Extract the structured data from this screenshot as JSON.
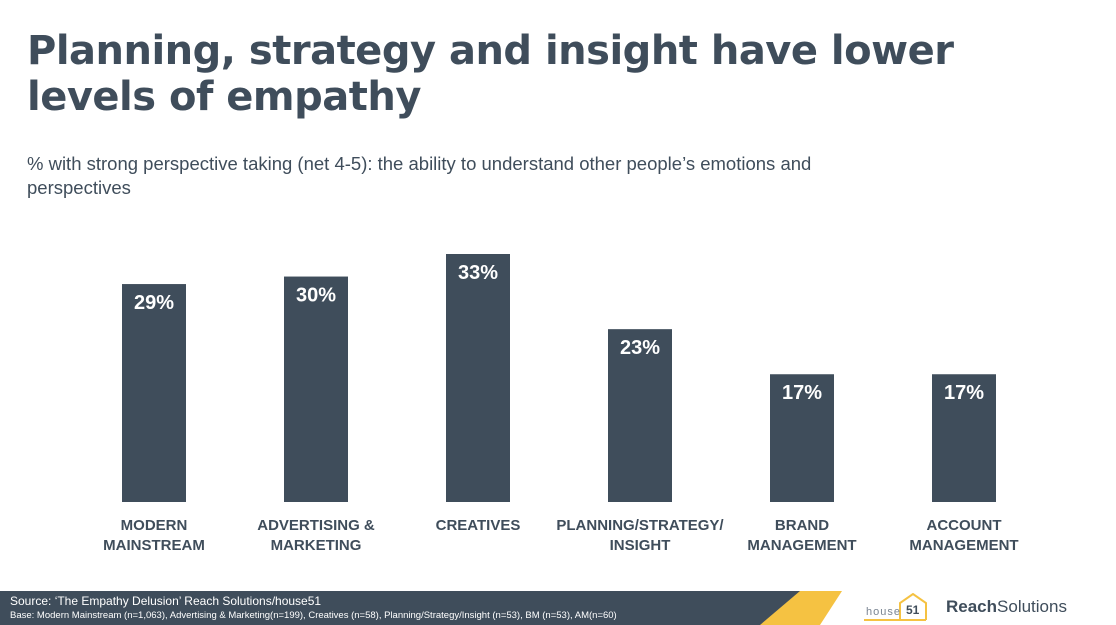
{
  "title": "Planning, strategy and insight have lower levels of empathy",
  "subtitle": "% with strong perspective taking (net 4-5): the ability to understand other people’s emotions and perspectives",
  "colors": {
    "bar": "#3f4d5b",
    "label": "#ffffff",
    "category": "#3f4d5b",
    "accent_yellow": "#f5c242"
  },
  "chart_data": {
    "type": "bar",
    "title": "% with strong perspective taking (net 4-5)",
    "categories": [
      [
        "MODERN",
        "MAINSTREAM"
      ],
      [
        "ADVERTISING &",
        "MARKETING"
      ],
      [
        "CREATIVES"
      ],
      [
        "PLANNING/STRATEGY/",
        "INSIGHT"
      ],
      [
        "BRAND",
        "MANAGEMENT"
      ],
      [
        "ACCOUNT",
        "MANAGEMENT"
      ]
    ],
    "values": [
      29,
      30,
      33,
      23,
      17,
      17
    ],
    "value_labels": [
      "29%",
      "30%",
      "33%",
      "23%",
      "17%",
      "17%"
    ],
    "unit": "%",
    "ylim": [
      0,
      40
    ],
    "xlabel": "",
    "ylabel": "",
    "grid": false
  },
  "footer": {
    "source": "Source: ‘The Empathy Delusion’ Reach Solutions/house51",
    "base": "Base: Modern Mainstream (n=1,063), Advertising & Marketing(n=199), Creatives (n=58), Planning/Strategy/Insight (n=53), BM (n=53), AM(n=60)",
    "logo_house_word": "house",
    "logo_house_number": "51",
    "logo_reach_bold": "Reach",
    "logo_reach_light": "Solutions"
  }
}
